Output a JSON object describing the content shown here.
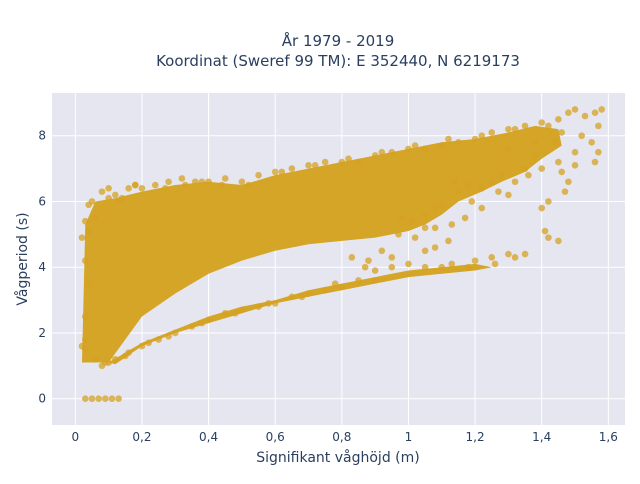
{
  "chart_data": {
    "type": "scatter",
    "title_lines": [
      "År 1979 - 2019",
      "Koordinat (Sweref 99 TM): E 352440, N 6219173"
    ],
    "xlabel": "Signifikant våghöjd (m)",
    "ylabel": "Vågperiod (s)",
    "xlim": [
      -0.07,
      1.65
    ],
    "ylim": [
      -0.8,
      9.3
    ],
    "x_ticks": [
      0,
      0.2,
      0.4,
      0.6,
      0.8,
      1,
      1.2,
      1.4,
      1.6
    ],
    "x_tick_labels": [
      "0",
      "0,2",
      "0,4",
      "0,6",
      "0,8",
      "1",
      "1,2",
      "1,4",
      "1,6"
    ],
    "y_ticks": [
      0,
      2,
      4,
      6,
      8
    ],
    "y_tick_labels": [
      "0",
      "2",
      "4",
      "6",
      "8"
    ],
    "grid": true,
    "marker_color": "#D4A221",
    "background_color": "#E5E6F0",
    "points": [
      [
        0.02,
        1.6
      ],
      [
        0.03,
        1.5
      ],
      [
        0.04,
        5.9
      ],
      [
        0.05,
        6.0
      ],
      [
        0.06,
        5.5
      ],
      [
        0.08,
        6.3
      ],
      [
        0.1,
        6.4
      ],
      [
        0.12,
        6.2
      ],
      [
        0.14,
        6.1
      ],
      [
        0.16,
        6.4
      ],
      [
        0.18,
        6.5
      ],
      [
        0.2,
        6.4
      ],
      [
        0.24,
        6.5
      ],
      [
        0.28,
        6.6
      ],
      [
        0.32,
        6.7
      ],
      [
        0.36,
        6.6
      ],
      [
        0.4,
        6.6
      ],
      [
        0.45,
        6.7
      ],
      [
        0.5,
        6.6
      ],
      [
        0.55,
        6.8
      ],
      [
        0.6,
        6.9
      ],
      [
        0.65,
        7.0
      ],
      [
        0.7,
        7.1
      ],
      [
        0.75,
        7.2
      ],
      [
        0.8,
        7.2
      ],
      [
        0.85,
        7.2
      ],
      [
        0.9,
        7.4
      ],
      [
        0.95,
        7.5
      ],
      [
        1.0,
        7.6
      ],
      [
        1.05,
        7.6
      ],
      [
        1.1,
        7.7
      ],
      [
        1.15,
        7.8
      ],
      [
        1.2,
        7.9
      ],
      [
        1.25,
        8.1
      ],
      [
        1.3,
        8.2
      ],
      [
        1.35,
        8.3
      ],
      [
        1.4,
        8.4
      ],
      [
        1.45,
        8.5
      ],
      [
        1.48,
        8.7
      ],
      [
        1.5,
        8.8
      ],
      [
        1.53,
        8.6
      ],
      [
        1.56,
        8.7
      ],
      [
        1.58,
        8.8
      ],
      [
        1.57,
        8.3
      ],
      [
        1.55,
        7.8
      ],
      [
        1.57,
        7.5
      ],
      [
        1.56,
        7.2
      ],
      [
        1.5,
        7.1
      ],
      [
        1.48,
        6.6
      ],
      [
        1.47,
        6.3
      ],
      [
        1.42,
        6.0
      ],
      [
        1.4,
        5.8
      ],
      [
        1.38,
        7.4
      ],
      [
        1.35,
        7.0
      ],
      [
        1.32,
        6.6
      ],
      [
        1.28,
        6.8
      ],
      [
        1.25,
        6.6
      ],
      [
        1.3,
        7.6
      ],
      [
        1.22,
        5.8
      ],
      [
        1.19,
        6.0
      ],
      [
        1.15,
        6.3
      ],
      [
        1.1,
        5.9
      ],
      [
        1.05,
        5.2
      ],
      [
        1.02,
        4.9
      ],
      [
        1.41,
        5.1
      ],
      [
        1.45,
        4.8
      ],
      [
        1.42,
        4.9
      ],
      [
        1.35,
        4.4
      ],
      [
        1.32,
        4.3
      ],
      [
        1.3,
        4.4
      ],
      [
        1.26,
        4.1
      ],
      [
        1.25,
        4.3
      ],
      [
        1.2,
        4.2
      ],
      [
        1.18,
        4.0
      ],
      [
        1.13,
        4.1
      ],
      [
        1.1,
        4.0
      ],
      [
        1.05,
        4.0
      ],
      [
        1.0,
        4.1
      ],
      [
        0.95,
        4.0
      ],
      [
        0.9,
        3.9
      ],
      [
        0.92,
        4.5
      ],
      [
        0.95,
        4.3
      ],
      [
        0.88,
        4.2
      ],
      [
        0.83,
        4.3
      ],
      [
        1.05,
        4.5
      ],
      [
        1.08,
        4.6
      ],
      [
        1.12,
        4.8
      ],
      [
        0.98,
        5.5
      ],
      [
        1.05,
        5.6
      ],
      [
        1.08,
        5.8
      ],
      [
        0.9,
        3.6
      ],
      [
        0.85,
        3.6
      ],
      [
        0.8,
        3.4
      ],
      [
        0.75,
        3.3
      ],
      [
        0.7,
        3.2
      ],
      [
        0.65,
        3.1
      ],
      [
        0.6,
        2.9
      ],
      [
        0.55,
        2.8
      ],
      [
        0.5,
        2.7
      ],
      [
        0.45,
        2.6
      ],
      [
        0.4,
        2.4
      ],
      [
        0.35,
        2.2
      ],
      [
        0.3,
        2.0
      ],
      [
        0.25,
        1.8
      ],
      [
        0.2,
        1.6
      ],
      [
        0.15,
        1.3
      ],
      [
        0.1,
        1.1
      ],
      [
        0.08,
        1.0
      ],
      [
        0.06,
        1.2
      ],
      [
        0.03,
        1.8
      ],
      [
        0.03,
        2.5
      ],
      [
        0.04,
        3.5
      ],
      [
        0.03,
        4.2
      ],
      [
        0.02,
        4.9
      ],
      [
        0.03,
        5.4
      ],
      [
        0.04,
        5.1
      ],
      [
        0.18,
        6.5
      ],
      [
        0.1,
        6.1
      ],
      [
        0.13,
        6.0
      ],
      [
        0.03,
        0.0
      ],
      [
        0.05,
        0.0
      ],
      [
        0.07,
        0.0
      ],
      [
        0.09,
        0.0
      ],
      [
        0.11,
        0.0
      ],
      [
        0.13,
        0.0
      ],
      [
        0.27,
        6.4
      ],
      [
        0.33,
        6.5
      ],
      [
        0.38,
        6.6
      ],
      [
        0.44,
        6.5
      ],
      [
        0.52,
        6.5
      ],
      [
        0.62,
        6.9
      ],
      [
        0.72,
        7.1
      ],
      [
        0.82,
        7.3
      ],
      [
        0.92,
        7.5
      ],
      [
        1.02,
        7.7
      ],
      [
        1.12,
        7.9
      ],
      [
        1.22,
        8.0
      ],
      [
        1.32,
        8.2
      ],
      [
        1.42,
        8.3
      ],
      [
        1.46,
        8.1
      ],
      [
        1.52,
        8.0
      ],
      [
        1.44,
        7.8
      ],
      [
        1.38,
        7.8
      ],
      [
        1.36,
        6.8
      ],
      [
        1.4,
        7.0
      ],
      [
        1.45,
        7.2
      ],
      [
        1.5,
        7.5
      ],
      [
        1.46,
        6.9
      ],
      [
        1.3,
        6.2
      ],
      [
        1.27,
        6.3
      ],
      [
        1.18,
        6.5
      ],
      [
        1.22,
        6.4
      ],
      [
        1.14,
        6.6
      ],
      [
        1.17,
        5.5
      ],
      [
        1.13,
        5.3
      ],
      [
        1.08,
        5.2
      ],
      [
        1.01,
        5.4
      ],
      [
        0.97,
        5.0
      ],
      [
        0.87,
        4.0
      ],
      [
        0.78,
        3.5
      ],
      [
        0.68,
        3.1
      ],
      [
        0.58,
        2.9
      ],
      [
        0.48,
        2.6
      ],
      [
        0.38,
        2.3
      ],
      [
        0.28,
        1.9
      ],
      [
        0.22,
        1.7
      ],
      [
        0.16,
        1.4
      ],
      [
        0.12,
        1.2
      ],
      [
        0.09,
        1.1
      ]
    ]
  }
}
